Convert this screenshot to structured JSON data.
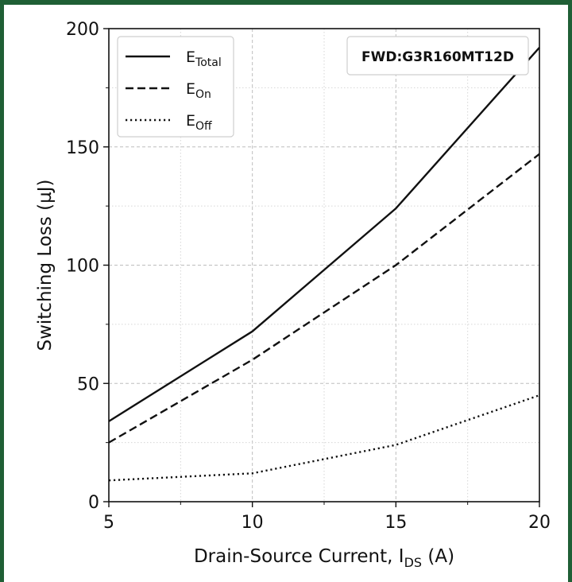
{
  "chart_data": {
    "type": "line",
    "xlabel": {
      "main": "Drain-Source Current, I",
      "sub": "DS",
      "tail": " (A)"
    },
    "ylabel": "Switching Loss (µJ)",
    "xlim": [
      5,
      20
    ],
    "ylim": [
      0,
      200
    ],
    "x_ticks": [
      5,
      10,
      15,
      20
    ],
    "y_ticks": [
      0,
      50,
      100,
      150,
      200
    ],
    "x_minor_ticks": [
      7.5,
      12.5,
      17.5
    ],
    "y_minor_ticks": [
      25,
      75,
      125,
      175
    ],
    "grid": true,
    "legend_position": "top-left",
    "annotation": "FWD:G3R160MT12D",
    "x": [
      5,
      10,
      15,
      20
    ],
    "series": [
      {
        "name_main": "E",
        "name_sub": "Total",
        "dash": "solid",
        "values": [
          34,
          72,
          124,
          192
        ]
      },
      {
        "name_main": "E",
        "name_sub": "On",
        "dash": "dashed",
        "values": [
          25,
          60,
          100,
          147
        ]
      },
      {
        "name_main": "E",
        "name_sub": "Off",
        "dash": "dotted",
        "values": [
          9,
          12,
          24,
          45
        ]
      }
    ]
  },
  "colors": {
    "frame": "#1f5f35",
    "line": "#111111",
    "grid": "#bdbdbd"
  }
}
